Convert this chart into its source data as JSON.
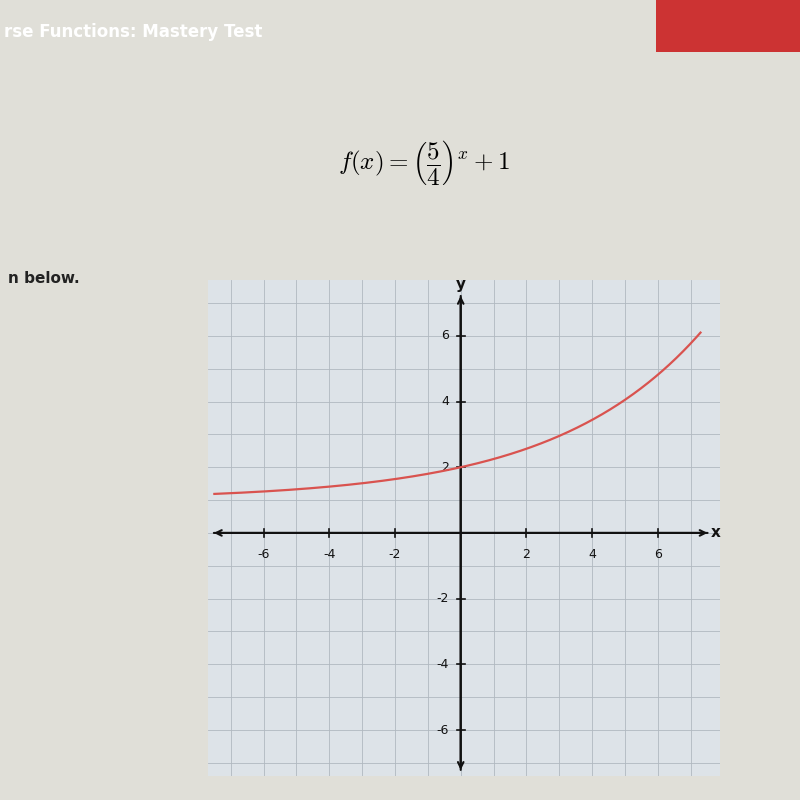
{
  "base": 1.25,
  "vertical_shift": 1,
  "x_ticks": [
    -6,
    -4,
    -2,
    2,
    4,
    6
  ],
  "y_ticks": [
    -6,
    -4,
    -2,
    2,
    4,
    6
  ],
  "curve_color": "#d9534f",
  "curve_linewidth": 1.6,
  "grid_color": "#b0b8c0",
  "grid_linewidth": 0.6,
  "axis_color": "#111111",
  "background_color": "#e8e8e4",
  "plot_bg_color": "#dde3e8",
  "header_bg": "#1e5494",
  "header_text": "rse Functions: Mastery Test",
  "header_text_color": "#ffffff",
  "formula_text": "$f(x) = \\left(\\dfrac{5}{4}\\right)^x + 1$",
  "below_text": "n below.",
  "xlabel": "x",
  "ylabel": "y",
  "page_bg": "#e0dfd8",
  "white_area_bg": "#f0efec"
}
